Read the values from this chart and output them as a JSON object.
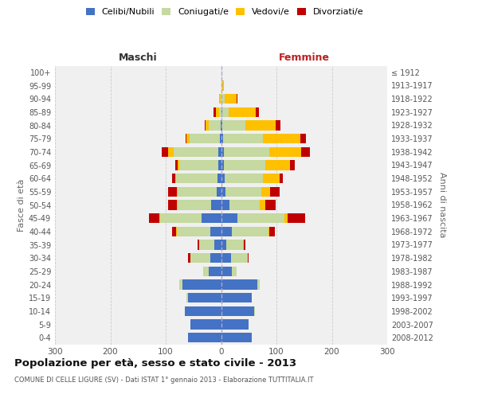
{
  "age_groups": [
    "0-4",
    "5-9",
    "10-14",
    "15-19",
    "20-24",
    "25-29",
    "30-34",
    "35-39",
    "40-44",
    "45-49",
    "50-54",
    "55-59",
    "60-64",
    "65-69",
    "70-74",
    "75-79",
    "80-84",
    "85-89",
    "90-94",
    "95-99",
    "100+"
  ],
  "birth_years": [
    "2008-2012",
    "2003-2007",
    "1998-2002",
    "1993-1997",
    "1988-1992",
    "1983-1987",
    "1978-1982",
    "1973-1977",
    "1968-1972",
    "1963-1967",
    "1958-1962",
    "1953-1957",
    "1948-1952",
    "1943-1947",
    "1938-1942",
    "1933-1937",
    "1928-1932",
    "1923-1927",
    "1918-1922",
    "1913-1917",
    "≤ 1912"
  ],
  "maschi_celibi": [
    60,
    55,
    65,
    60,
    70,
    22,
    20,
    12,
    20,
    35,
    18,
    8,
    6,
    5,
    5,
    2,
    1,
    0,
    0,
    0,
    0
  ],
  "maschi_coniugati": [
    0,
    0,
    1,
    2,
    5,
    10,
    35,
    28,
    60,
    75,
    60,
    70,
    75,
    70,
    80,
    55,
    22,
    4,
    1,
    0,
    0
  ],
  "maschi_vedovi": [
    0,
    0,
    0,
    0,
    0,
    0,
    0,
    0,
    1,
    2,
    2,
    2,
    2,
    3,
    10,
    5,
    5,
    5,
    2,
    0,
    0
  ],
  "maschi_divorziati": [
    0,
    0,
    0,
    0,
    0,
    0,
    5,
    2,
    8,
    18,
    15,
    15,
    5,
    5,
    12,
    2,
    2,
    5,
    0,
    0,
    0
  ],
  "femmine_nubili": [
    55,
    50,
    60,
    55,
    65,
    20,
    18,
    10,
    20,
    30,
    15,
    8,
    6,
    5,
    5,
    3,
    2,
    2,
    1,
    0,
    0
  ],
  "femmine_coniugate": [
    0,
    0,
    1,
    1,
    5,
    8,
    30,
    30,
    65,
    85,
    55,
    65,
    70,
    75,
    82,
    72,
    42,
    12,
    5,
    2,
    0
  ],
  "femmine_vedove": [
    0,
    0,
    0,
    0,
    0,
    0,
    0,
    1,
    2,
    5,
    10,
    15,
    30,
    45,
    58,
    68,
    55,
    48,
    22,
    3,
    1
  ],
  "femmine_divorziate": [
    0,
    0,
    0,
    0,
    0,
    0,
    2,
    3,
    10,
    32,
    18,
    18,
    5,
    8,
    15,
    10,
    8,
    6,
    2,
    0,
    0
  ],
  "color_celibi": "#4472c4",
  "color_coniugati": "#c5d9a0",
  "color_vedovi": "#ffc000",
  "color_divorziati": "#c00000",
  "title": "Popolazione per età, sesso e stato civile - 2013",
  "subtitle": "COMUNE DI CELLE LIGURE (SV) - Dati ISTAT 1° gennaio 2013 - Elaborazione TUTTITALIA.IT",
  "label_maschi": "Maschi",
  "label_femmine": "Femmine",
  "ylabel_left": "Fasce di età",
  "ylabel_right": "Anni di nascita",
  "legend_labels": [
    "Celibi/Nubili",
    "Coniugati/e",
    "Vedovi/e",
    "Divorziati/e"
  ],
  "xlim": 300,
  "bg_color": "#f0f0f0",
  "grid_color": "#cccccc"
}
